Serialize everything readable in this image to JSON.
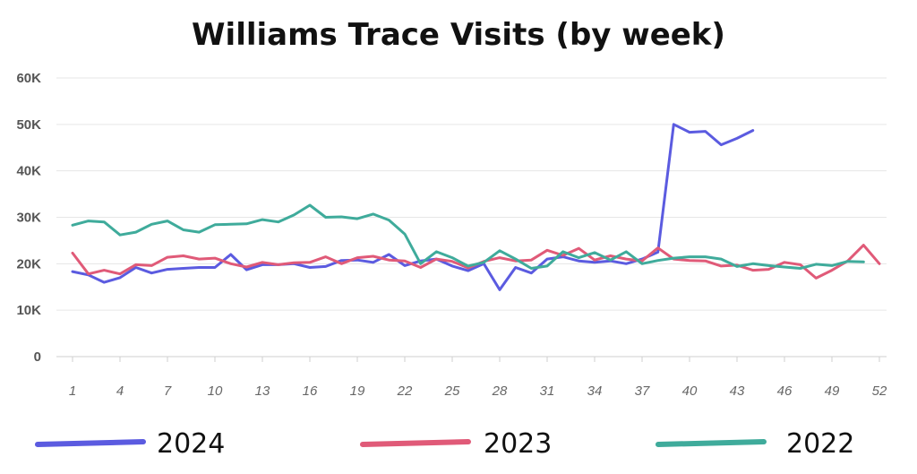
{
  "chart_data": {
    "type": "line",
    "title": "Williams Trace Visits (by week)",
    "xlabel": "",
    "ylabel": "",
    "xlim": [
      1,
      52
    ],
    "ylim": [
      0,
      60000
    ],
    "y_ticks": [
      {
        "value": 0,
        "label": "0"
      },
      {
        "value": 10000,
        "label": "10K"
      },
      {
        "value": 20000,
        "label": "20K"
      },
      {
        "value": 30000,
        "label": "30K"
      },
      {
        "value": 40000,
        "label": "40K"
      },
      {
        "value": 50000,
        "label": "50K"
      },
      {
        "value": 60000,
        "label": "60K"
      }
    ],
    "x_ticks": [
      "1",
      "4",
      "7",
      "10",
      "13",
      "16",
      "19",
      "22",
      "25",
      "28",
      "31",
      "34",
      "37",
      "40",
      "43",
      "46",
      "49",
      "52"
    ],
    "grid": true,
    "legend_position": "bottom",
    "series": [
      {
        "name": "2024",
        "color": "#5b5be0",
        "x": [
          1,
          2,
          3,
          4,
          5,
          6,
          7,
          8,
          9,
          10,
          11,
          12,
          13,
          14,
          15,
          16,
          17,
          18,
          19,
          20,
          21,
          22,
          23,
          24,
          25,
          26,
          27,
          28,
          29,
          30,
          31,
          32,
          33,
          34,
          35,
          36,
          37,
          38,
          39,
          40,
          41,
          42,
          43,
          44,
          45
        ],
        "values": [
          18300,
          17600,
          16000,
          17000,
          19200,
          18000,
          18800,
          19000,
          19200,
          19200,
          22000,
          18700,
          19800,
          19800,
          20000,
          19200,
          19400,
          20700,
          20800,
          20300,
          22000,
          19600,
          20600,
          21000,
          19500,
          18500,
          20000,
          14400,
          19200,
          18000,
          21000,
          21500,
          20600,
          20300,
          20600,
          20000,
          21000,
          22500,
          50000,
          48300,
          48500,
          45600,
          47000,
          48700,
          null
        ]
      },
      {
        "name": "2023",
        "color": "#e05a78",
        "x": [
          1,
          2,
          3,
          4,
          5,
          6,
          7,
          8,
          9,
          10,
          11,
          12,
          13,
          14,
          15,
          16,
          17,
          18,
          19,
          20,
          21,
          22,
          23,
          24,
          25,
          26,
          27,
          28,
          29,
          30,
          31,
          32,
          33,
          34,
          35,
          36,
          37,
          38,
          39,
          40,
          41,
          42,
          43,
          44,
          45,
          46,
          47,
          48,
          49,
          50,
          51,
          52
        ],
        "values": [
          22300,
          17800,
          18600,
          17800,
          19800,
          19600,
          21400,
          21700,
          21000,
          21200,
          20000,
          19300,
          20300,
          19800,
          20200,
          20300,
          21500,
          20000,
          21300,
          21600,
          20800,
          20600,
          19200,
          21000,
          20500,
          19100,
          20500,
          21300,
          20600,
          20800,
          22900,
          21800,
          23300,
          20800,
          21700,
          21000,
          20600,
          23400,
          21000,
          20700,
          20600,
          19500,
          19700,
          18600,
          18800,
          20300,
          19800,
          16900,
          18600,
          20600,
          24000,
          20000
        ]
      },
      {
        "name": "2022",
        "color": "#3fab9b",
        "x": [
          1,
          2,
          3,
          4,
          5,
          6,
          7,
          8,
          9,
          10,
          11,
          12,
          13,
          14,
          15,
          16,
          17,
          18,
          19,
          20,
          21,
          22,
          23,
          24,
          25,
          26,
          27,
          28,
          29,
          30,
          31,
          32,
          33,
          34,
          35,
          36,
          37,
          38,
          39,
          40,
          41,
          42,
          43,
          44,
          45,
          46,
          47,
          48,
          49,
          50,
          51
        ],
        "values": [
          28300,
          29200,
          29000,
          26200,
          26800,
          28500,
          29200,
          27300,
          26800,
          28400,
          28500,
          28600,
          29500,
          29000,
          30500,
          32600,
          30000,
          30100,
          29700,
          30700,
          29400,
          26400,
          20000,
          22600,
          21300,
          19500,
          20300,
          22800,
          21000,
          19000,
          19500,
          22600,
          21300,
          22400,
          20800,
          22600,
          20000,
          20700,
          21200,
          21500,
          21500,
          21000,
          19400,
          20000,
          19600,
          19300,
          19000,
          19900,
          19600,
          20500,
          20400
        ]
      }
    ]
  }
}
